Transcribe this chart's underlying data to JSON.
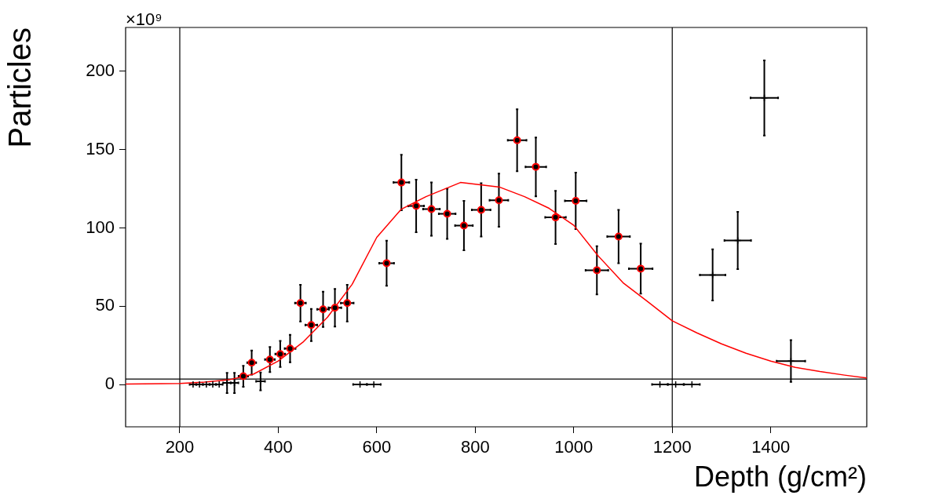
{
  "chart_data": {
    "type": "scatter",
    "xlabel": "Depth (g/cm²)",
    "ylabel": "Particles",
    "annotations": [
      "×10⁹"
    ],
    "xlim": [
      90,
      1595
    ],
    "ylim": [
      -27,
      228
    ],
    "xticks": [
      200,
      400,
      600,
      800,
      1000,
      1200,
      1400
    ],
    "yticks": [
      0,
      50,
      100,
      150,
      200
    ],
    "ref_lines": [
      {
        "axis": "x",
        "value": 200,
        "color": "#000000"
      },
      {
        "axis": "x",
        "value": 1200,
        "color": "#000000"
      },
      {
        "axis": "y",
        "value": 3.5,
        "color": "#000000"
      }
    ],
    "series": [
      {
        "type": "scatter",
        "color": "#ff0000",
        "marker": "circle",
        "x": [
          329,
          346,
          383,
          404,
          424,
          445,
          467,
          491,
          515,
          540,
          620,
          650,
          680,
          711,
          743,
          777,
          812,
          848,
          885,
          923,
          963,
          1004,
          1047,
          1091,
          1136
        ],
        "values": [
          5.3,
          14,
          16,
          19.5,
          23,
          52,
          38,
          48,
          49,
          52,
          77.5,
          129,
          114,
          112,
          109,
          101.5,
          111.5,
          117.7,
          156,
          139,
          106.7,
          117.3,
          73,
          94.5,
          74
        ],
        "errors": [
          6.7,
          7.7,
          8,
          8.3,
          8.8,
          11.7,
          10.3,
          11.3,
          12,
          11.7,
          14.4,
          17.7,
          16.8,
          17,
          16,
          15.8,
          17,
          17,
          19.8,
          18.8,
          17,
          18,
          15.4,
          17,
          16
        ],
        "xerrors": [
          9.6,
          9,
          10,
          10,
          11,
          11,
          12,
          12,
          13,
          13,
          15,
          16,
          16,
          17,
          17,
          18,
          19,
          19,
          19,
          21,
          21,
          22,
          23,
          23,
          24
        ]
      },
      {
        "type": "scatter",
        "color": "#000000",
        "marker": "cross",
        "x": [
          227,
          240,
          254,
          267,
          280,
          296,
          311,
          364,
          566,
          594,
          1175,
          1207,
          1240,
          1282,
          1333,
          1387,
          1441
        ],
        "values": [
          0,
          0,
          0,
          0,
          0,
          1,
          1,
          2,
          0,
          0,
          0,
          0,
          0,
          70,
          92,
          183,
          15
        ],
        "errors": [
          null,
          null,
          null,
          null,
          null,
          6.5,
          6.5,
          5.7,
          null,
          null,
          null,
          null,
          null,
          16.4,
          18.3,
          24,
          13.3
        ],
        "xerrors": [
          7,
          7,
          7,
          7,
          7,
          8,
          8,
          9,
          14,
          14,
          16,
          16,
          16,
          26,
          27,
          28,
          29
        ]
      },
      {
        "type": "line",
        "color": "#ff0000",
        "marker": "none",
        "x": [
          90,
          200,
          250,
          300,
          350,
          400,
          450,
          500,
          550,
          600,
          650,
          700,
          770,
          850,
          900,
          950,
          1000,
          1050,
          1100,
          1150,
          1200,
          1250,
          1300,
          1350,
          1400,
          1450,
          1500,
          1550,
          1595
        ],
        "values": [
          0.3,
          0.7,
          1.5,
          3,
          6.7,
          15,
          27,
          43,
          64,
          94,
          112,
          120,
          129,
          126,
          120,
          112.5,
          101.7,
          82,
          65,
          53,
          40.7,
          33,
          26,
          20,
          15,
          11,
          8.3,
          6,
          4.2
        ]
      }
    ]
  }
}
